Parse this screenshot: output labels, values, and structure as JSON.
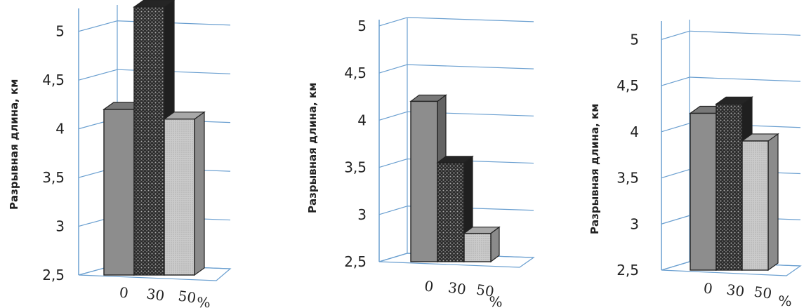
{
  "colors": {
    "axis": "#6a9fd0",
    "grid": "#6a9fd0",
    "bar_0": "#8d8d8d",
    "bar_30": "#2c2c2c",
    "bar_50": "#c6c6c6"
  },
  "chart_data": [
    {
      "type": "bar",
      "title": "",
      "xlabel": "%",
      "ylabel": "Разрывная длина, км",
      "categories": [
        "0",
        "30",
        "50"
      ],
      "values": [
        4.2,
        5.25,
        4.1
      ],
      "ylim": [
        2.5,
        5.25
      ],
      "yticks": [
        "2,5",
        "3",
        "3,5",
        "4",
        "4,5",
        "5"
      ],
      "grid": true
    },
    {
      "type": "bar",
      "title": "",
      "xlabel": "%",
      "ylabel": "Разрывная длина, км",
      "categories": [
        "0",
        "30",
        "50"
      ],
      "values": [
        4.2,
        3.55,
        2.8
      ],
      "ylim": [
        2.5,
        5.2
      ],
      "yticks": [
        "2,5",
        "3",
        "3,5",
        "4",
        "4,5",
        "5"
      ],
      "grid": true
    },
    {
      "type": "bar",
      "title": "",
      "xlabel": "%",
      "ylabel": "Разрывная длина, км",
      "categories": [
        "0",
        "30",
        "50"
      ],
      "values": [
        4.2,
        4.3,
        3.9
      ],
      "ylim": [
        2.5,
        5.2
      ],
      "yticks": [
        "2,5",
        "3",
        "3,5",
        "4",
        "4,5",
        "5"
      ],
      "grid": true
    }
  ]
}
